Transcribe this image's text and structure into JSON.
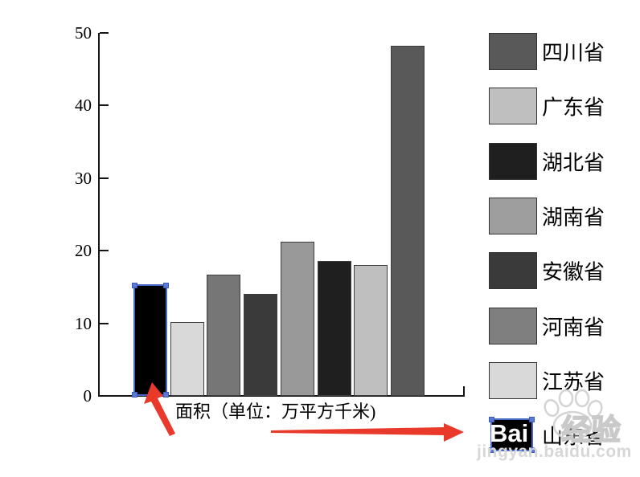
{
  "chart_data": {
    "type": "bar",
    "title": "",
    "xlabel": "面积（单位：万平方千米)",
    "ylabel": "",
    "ylim": [
      0,
      50
    ],
    "yticks": [
      0,
      10,
      20,
      30,
      40,
      50
    ],
    "grid": false,
    "legend_position": "right",
    "categories": [
      "山东省",
      "江苏省",
      "河南省",
      "安徽省",
      "湖南省",
      "湖北省",
      "广东省",
      "四川省"
    ],
    "values": [
      15.4,
      10.2,
      16.7,
      14.0,
      21.2,
      18.6,
      18.0,
      48.2
    ],
    "bar_colors": [
      "#000000",
      "#d9d9d9",
      "#767676",
      "#3a3a3a",
      "#999999",
      "#1f1f1f",
      "#bfbfbf",
      "#595959"
    ],
    "selected_bar_index": 0,
    "legend": [
      {
        "label": "四川省",
        "color": "#595959",
        "selected": false
      },
      {
        "label": "广东省",
        "color": "#bfbfbf",
        "selected": false
      },
      {
        "label": "湖北省",
        "color": "#1f1f1f",
        "selected": false
      },
      {
        "label": "湖南省",
        "color": "#9e9e9e",
        "selected": false
      },
      {
        "label": "安徽省",
        "color": "#3a3a3a",
        "selected": false
      },
      {
        "label": "河南省",
        "color": "#7f7f7f",
        "selected": false
      },
      {
        "label": "江苏省",
        "color": "#d9d9d9",
        "selected": false
      },
      {
        "label": "山东省",
        "color": "#000000",
        "selected": true
      }
    ]
  },
  "annotations": {
    "arrow_color": "#e8392b",
    "selection_border_color": "#4468c8",
    "selection_handle_color": "#5b79d6"
  },
  "watermark": {
    "logo_text": "Bai",
    "ghost_text": "经验",
    "url": "jingyan.baidu.com",
    "color": "#d7d7d7"
  }
}
